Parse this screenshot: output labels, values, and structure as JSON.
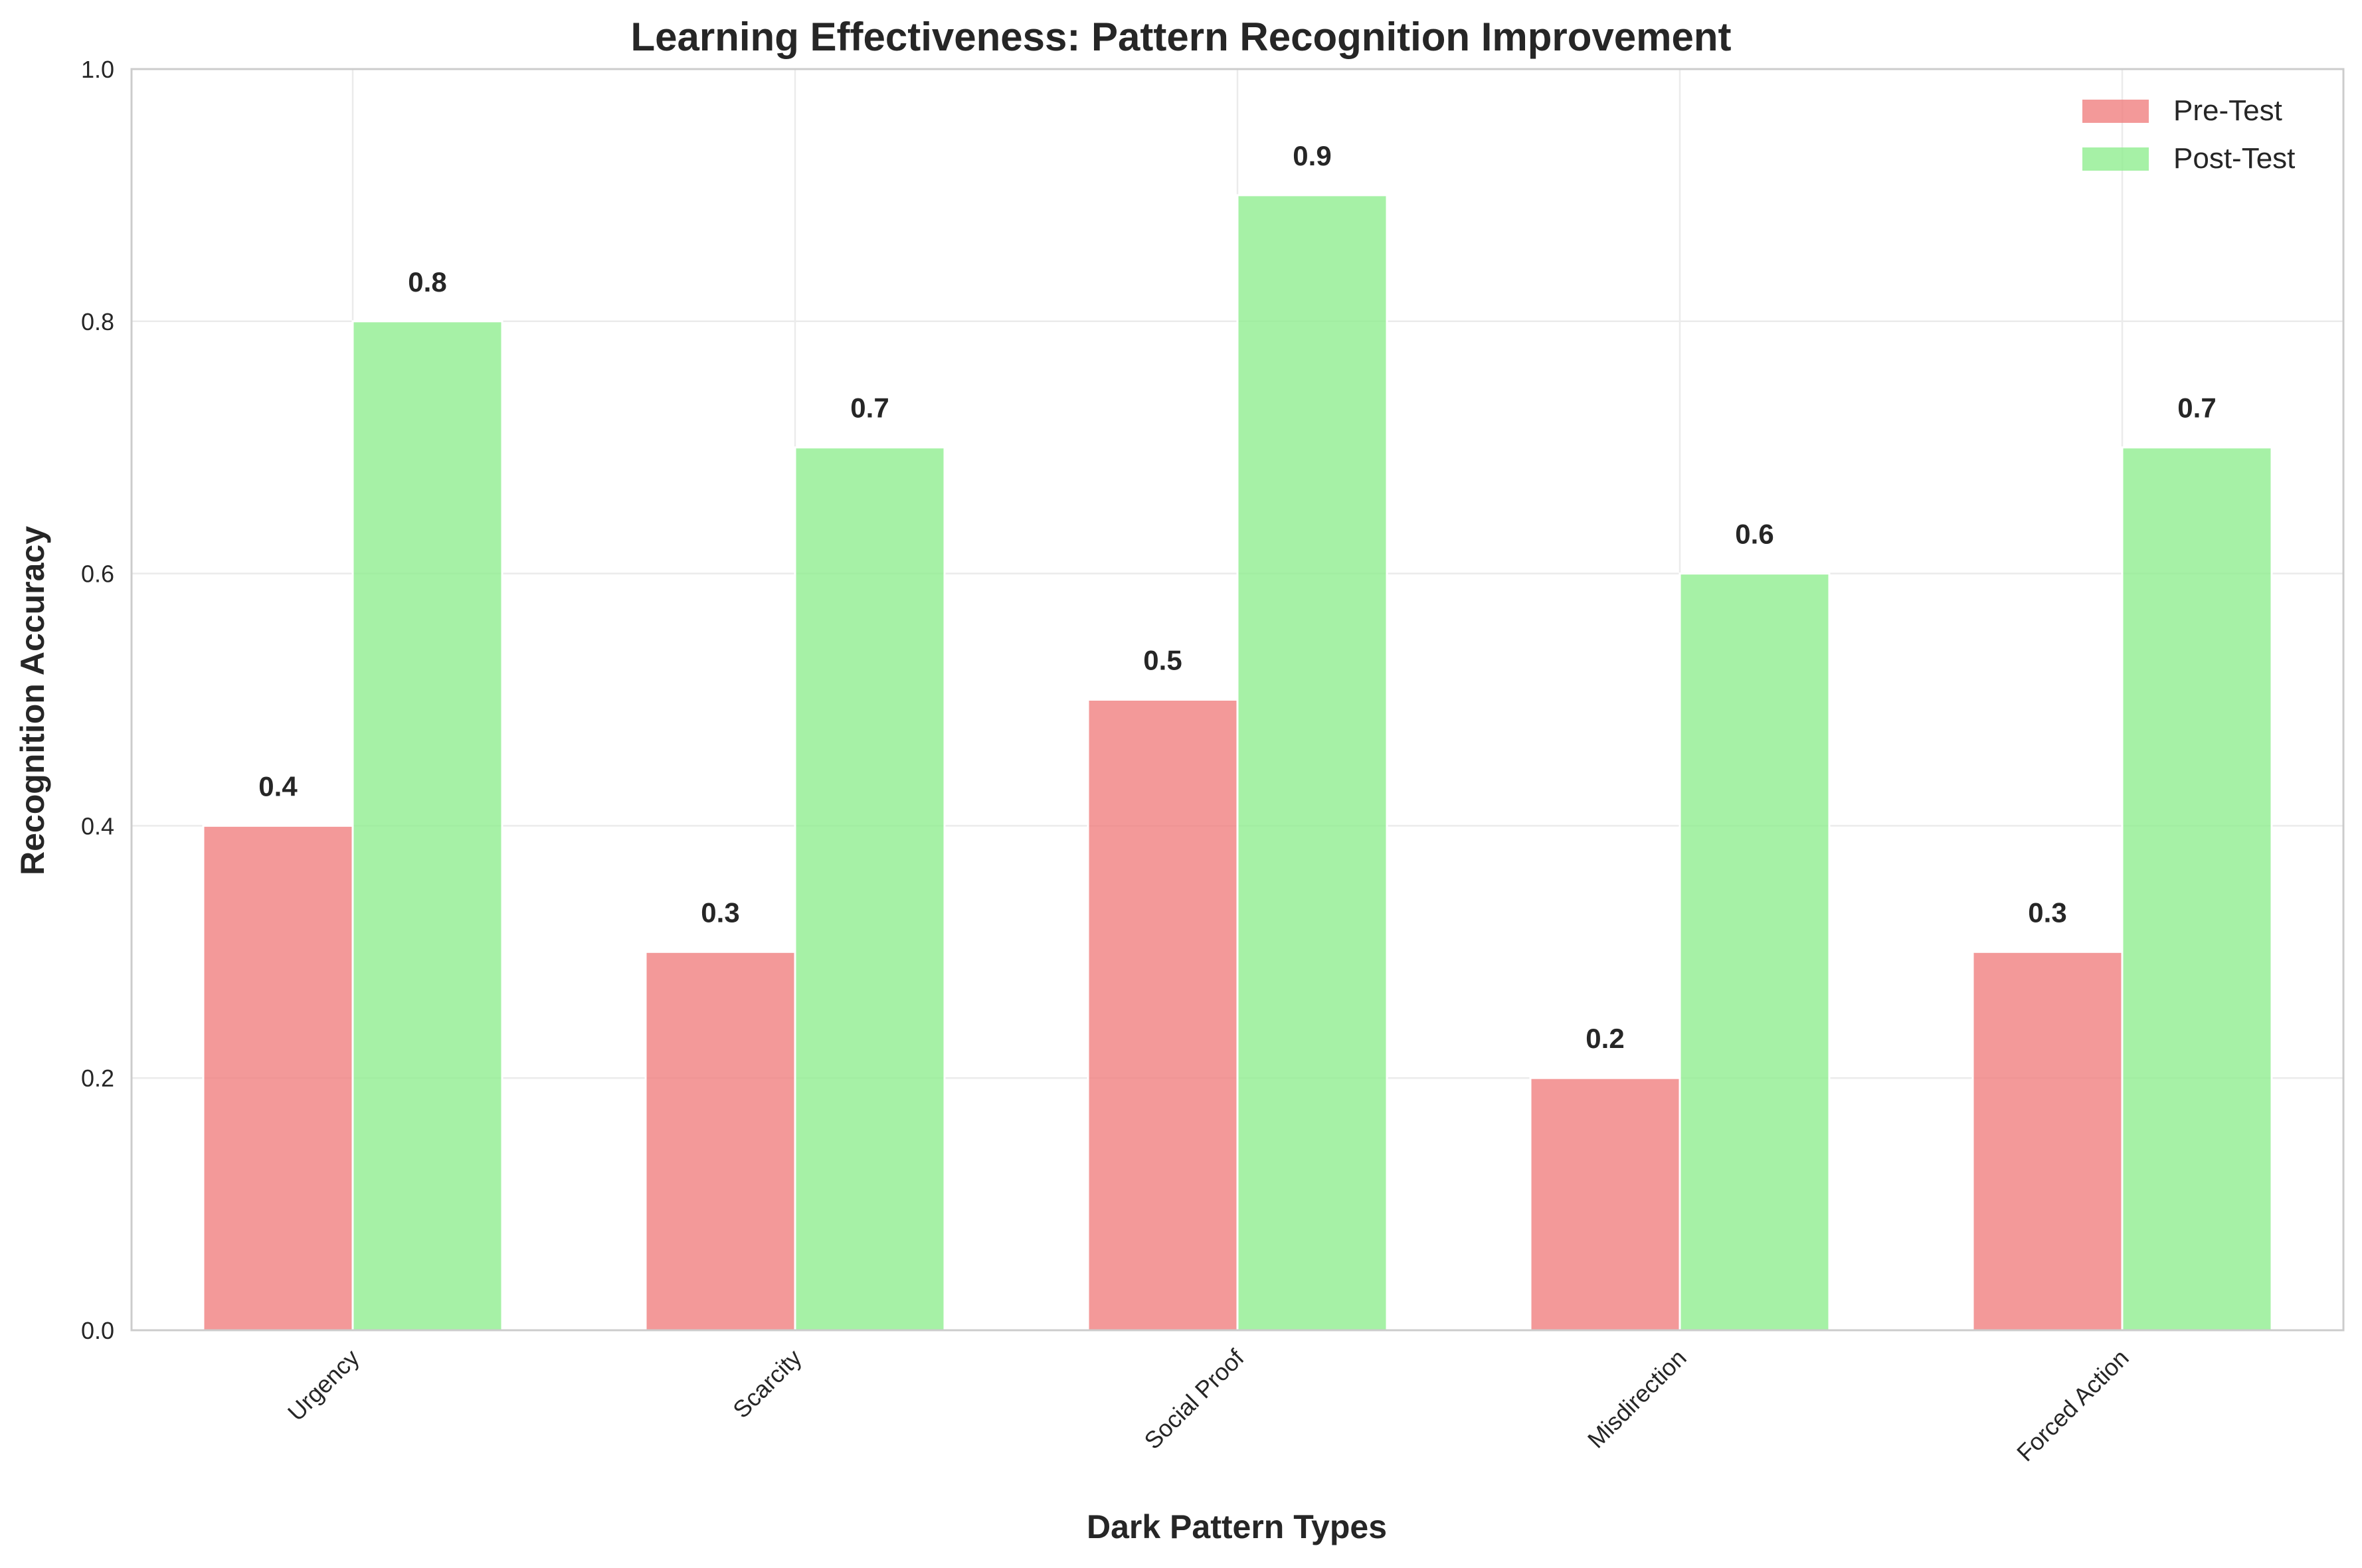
{
  "chart_data": {
    "type": "bar",
    "title": "Learning Effectiveness: Pattern Recognition Improvement",
    "xlabel": "Dark Pattern Types",
    "ylabel": "Recognition Accuracy",
    "categories": [
      "Urgency",
      "Scarcity",
      "Social Proof",
      "Misdirection",
      "Forced Action"
    ],
    "series": [
      {
        "name": "Pre-Test",
        "values": [
          0.4,
          0.3,
          0.5,
          0.2,
          0.3
        ],
        "color": "#f08080"
      },
      {
        "name": "Post-Test",
        "values": [
          0.8,
          0.7,
          0.9,
          0.6,
          0.7
        ],
        "color": "#90ee90"
      }
    ],
    "ylim": [
      0,
      1.0
    ],
    "yticks": [
      "0.0",
      "0.2",
      "0.4",
      "0.6",
      "0.8",
      "1.0"
    ],
    "grid": true,
    "legend_position": "top-right",
    "bar_alpha": 0.8,
    "axes_edge_color": "#cccccc",
    "grid_color": "#ebebeb",
    "text_color": "#262626"
  }
}
